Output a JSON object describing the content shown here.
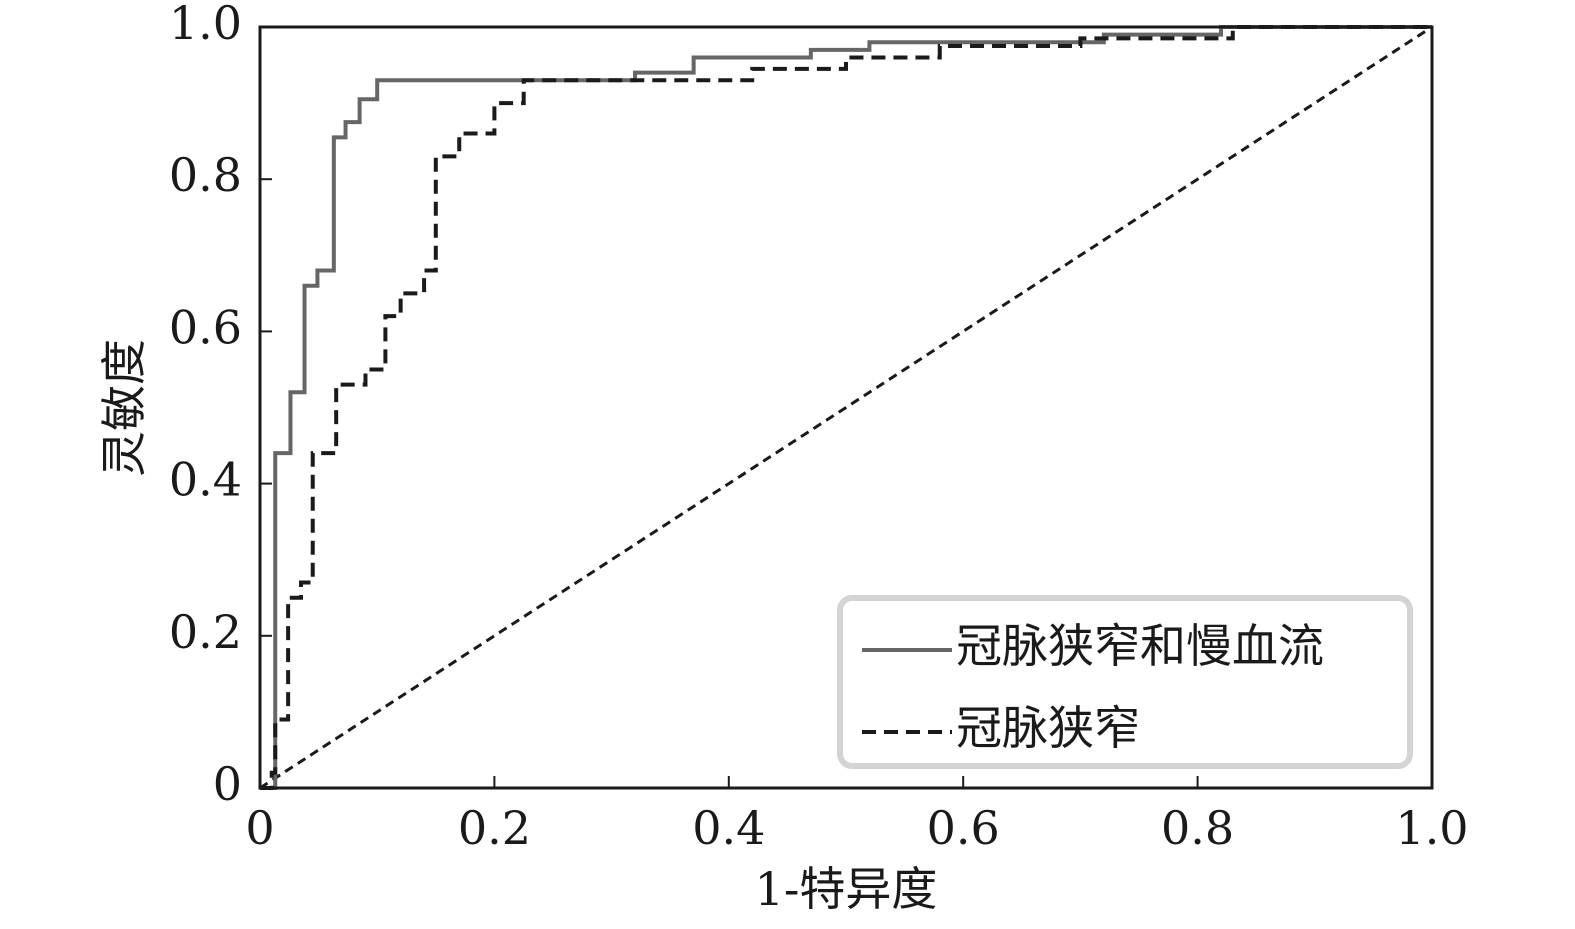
{
  "chart_data": {
    "type": "line",
    "xlabel": "1-特异度",
    "ylabel": "灵敏度",
    "xlim": [
      0,
      1
    ],
    "ylim": [
      0,
      1
    ],
    "xticks": [
      0,
      0.2,
      0.4,
      0.6,
      0.8,
      {
        "value": 1,
        "label": "1.0"
      }
    ],
    "yticks": [
      0,
      0.2,
      0.4,
      0.6,
      0.8,
      {
        "value": 1,
        "label": "1.0"
      }
    ],
    "legend": "lower right",
    "series": [
      {
        "name": "冠脉狭窄和慢血流",
        "color": "#666666",
        "dash": "solid",
        "x": [
          0,
          0.013,
          0.013,
          0.026,
          0.026,
          0.038,
          0.038,
          0.049,
          0.049,
          0.063,
          0.063,
          0.073,
          0.073,
          0.085,
          0.085,
          0.1,
          0.1,
          0.32,
          0.32,
          0.37,
          0.37,
          0.47,
          0.47,
          0.52,
          0.52,
          0.72,
          0.72,
          0.82,
          0.82,
          1
        ],
        "values": [
          0,
          0,
          0.44,
          0.44,
          0.52,
          0.52,
          0.66,
          0.66,
          0.68,
          0.68,
          0.855,
          0.855,
          0.875,
          0.875,
          0.905,
          0.905,
          0.93,
          0.93,
          0.94,
          0.94,
          0.96,
          0.96,
          0.97,
          0.97,
          0.98,
          0.98,
          0.99,
          0.99,
          1,
          1
        ]
      },
      {
        "name": "冠脉狭窄",
        "color": "#1a1a1a",
        "dash": "dashed",
        "x": [
          0,
          0.01,
          0.01,
          0.013,
          0.013,
          0.024,
          0.024,
          0.035,
          0.035,
          0.045,
          0.045,
          0.065,
          0.065,
          0.09,
          0.09,
          0.107,
          0.107,
          0.12,
          0.12,
          0.14,
          0.14,
          0.15,
          0.15,
          0.17,
          0.17,
          0.2,
          0.2,
          0.225,
          0.225,
          0.42,
          0.42,
          0.5,
          0.5,
          0.58,
          0.58,
          0.7,
          0.7,
          0.83,
          0.83,
          1
        ],
        "values": [
          0,
          0,
          0.02,
          0.02,
          0.09,
          0.09,
          0.25,
          0.25,
          0.27,
          0.27,
          0.44,
          0.44,
          0.53,
          0.53,
          0.55,
          0.55,
          0.62,
          0.62,
          0.65,
          0.65,
          0.68,
          0.68,
          0.83,
          0.83,
          0.86,
          0.86,
          0.9,
          0.9,
          0.93,
          0.93,
          0.945,
          0.945,
          0.96,
          0.96,
          0.975,
          0.975,
          0.985,
          0.985,
          1,
          1
        ]
      }
    ]
  }
}
